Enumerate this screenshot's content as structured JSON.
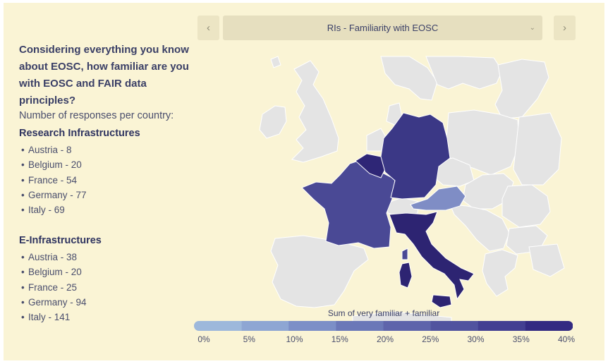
{
  "question": "Considering everything you know about EOSC, how familiar are you with EOSC and FAIR data principles?",
  "responses_heading": "Number of responses per country:",
  "groups": [
    {
      "title": "Research Infrastructures",
      "items": [
        {
          "country": "Austria",
          "count": "8"
        },
        {
          "country": "Belgium",
          "count": "20"
        },
        {
          "country": "France",
          "count": "54"
        },
        {
          "country": "Germany",
          "count": "77"
        },
        {
          "country": "Italy",
          "count": "69"
        }
      ]
    },
    {
      "title": "E-Infrastructures",
      "items": [
        {
          "country": "Austria",
          "count": "38"
        },
        {
          "country": "Belgium",
          "count": "20"
        },
        {
          "country": "France",
          "count": "25"
        },
        {
          "country": "Germany",
          "count": "94"
        },
        {
          "country": "Italy",
          "count": "141"
        }
      ]
    }
  ],
  "selector": {
    "current": "RIs - Familiarity with EOSC",
    "prev_icon": "chevron-left-icon",
    "next_icon": "chevron-right-icon",
    "dropdown_icon": "chevron-down-icon"
  },
  "legend": {
    "title": "Sum of very familiar + familiar",
    "ticks": [
      "0%",
      "5%",
      "10%",
      "15%",
      "20%",
      "25%",
      "30%",
      "35%",
      "40%"
    ],
    "colors": [
      "#9db8db",
      "#8ea6d3",
      "#7c8fc7",
      "#6b78b8",
      "#5e64ab",
      "#51539f",
      "#433f92",
      "#332a82"
    ]
  },
  "map_colors": {
    "no_data": "#e4e4e4",
    "border": "#ffffff",
    "Belgium": "#2e2676",
    "Germany": "#3b3886",
    "France": "#4a4995",
    "Austria": "#7f8dc5",
    "Italy": "#2d2472"
  }
}
